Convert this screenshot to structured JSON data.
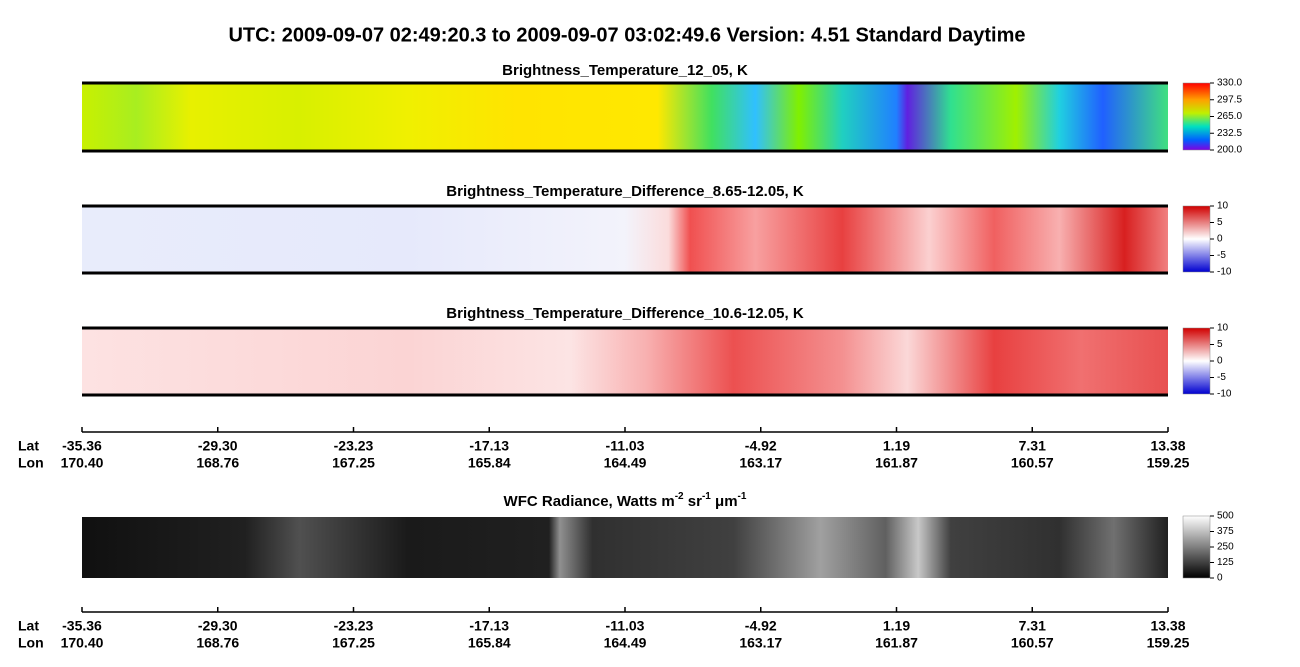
{
  "title": "UTC:  2009-09-07   02:49:20.3  to  2009-09-07   03:02:49.6    Version: 4.51  Standard Daytime",
  "panels": [
    {
      "title": "Brightness_Temperature_12_05, K",
      "colorbar": [
        "330.0",
        "297.5",
        "265.0",
        "232.5",
        "200.0"
      ]
    },
    {
      "title": "Brightness_Temperature_Difference_8.65-12.05, K",
      "colorbar": [
        "10",
        "5",
        "0",
        "-5",
        "-10"
      ]
    },
    {
      "title": "Brightness_Temperature_Difference_10.6-12.05, K",
      "colorbar": [
        "10",
        "5",
        "0",
        "-5",
        "-10"
      ]
    },
    {
      "title_parts": [
        "WFC Radiance, Watts m",
        "-2",
        " sr",
        "-1",
        " μm",
        "-1"
      ],
      "colorbar": [
        "500",
        "375",
        "250",
        "125",
        "0"
      ]
    }
  ],
  "axes": [
    {
      "lat_label": "Lat",
      "lon_label": "Lon",
      "lat": [
        "-35.36",
        "-29.30",
        "-23.23",
        "-17.13",
        "-11.03",
        "-4.92",
        "1.19",
        "7.31",
        "13.38"
      ],
      "lon": [
        "170.40",
        "168.76",
        "167.25",
        "165.84",
        "164.49",
        "163.17",
        "161.87",
        "160.57",
        "159.25"
      ]
    },
    {
      "lat_label": "Lat",
      "lon_label": "Lon",
      "lat": [
        "-35.36",
        "-29.30",
        "-23.23",
        "-17.13",
        "-11.03",
        "-4.92",
        "1.19",
        "7.31",
        "13.38"
      ],
      "lon": [
        "170.40",
        "168.76",
        "167.25",
        "165.84",
        "164.49",
        "163.17",
        "161.87",
        "160.57",
        "159.25"
      ]
    }
  ]
}
